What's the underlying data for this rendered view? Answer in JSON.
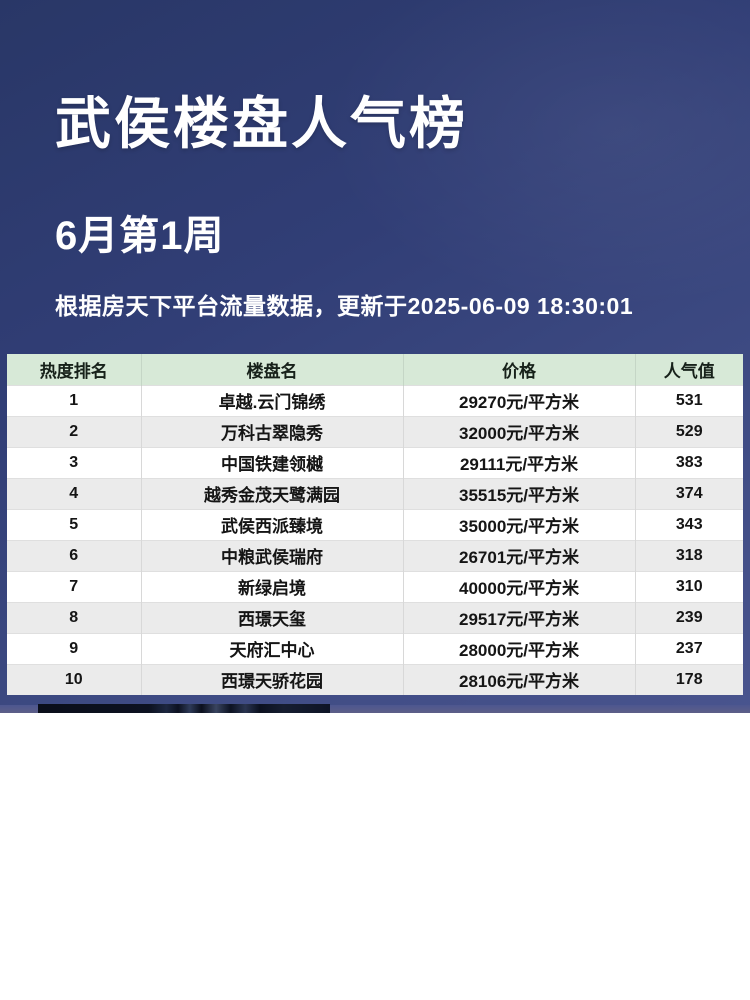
{
  "hero": {
    "title": "武侯楼盘人气榜",
    "period": "6月第1周",
    "source_note": "根据房天下平台流量数据，更新于2025-06-09 18:30:01"
  },
  "table": {
    "columns": {
      "rank": "热度排名",
      "name": "楼盘名",
      "price": "价格",
      "popularity": "人气值"
    }
  },
  "chart_data": {
    "type": "table",
    "title": "武侯楼盘人气榜",
    "subtitle": "6月第1周",
    "note": "根据房天下平台流量数据，更新于2025-06-09 18:30:01",
    "columns": [
      "热度排名",
      "楼盘名",
      "价格",
      "人气值"
    ],
    "rows": [
      {
        "rank": "1",
        "name": "卓越.云门锦绣",
        "price": "29270元/平方米",
        "popularity": "531"
      },
      {
        "rank": "2",
        "name": "万科古翠隐秀",
        "price": "32000元/平方米",
        "popularity": "529"
      },
      {
        "rank": "3",
        "name": "中国铁建领樾",
        "price": "29111元/平方米",
        "popularity": "383"
      },
      {
        "rank": "4",
        "name": "越秀金茂天鹭满园",
        "price": "35515元/平方米",
        "popularity": "374"
      },
      {
        "rank": "5",
        "name": "武侯西派臻境",
        "price": "35000元/平方米",
        "popularity": "343"
      },
      {
        "rank": "6",
        "name": "中粮武侯瑞府",
        "price": "26701元/平方米",
        "popularity": "318"
      },
      {
        "rank": "7",
        "name": "新绿启境",
        "price": "40000元/平方米",
        "popularity": "310"
      },
      {
        "rank": "8",
        "name": "西璟天玺",
        "price": "29517元/平方米",
        "popularity": "239"
      },
      {
        "rank": "9",
        "name": "天府汇中心",
        "price": "28000元/平方米",
        "popularity": "237"
      },
      {
        "rank": "10",
        "name": "西璟天骄花园",
        "price": "28106元/平方米",
        "popularity": "178"
      }
    ]
  },
  "colors": {
    "hero_gradient_start": "#293767",
    "hero_gradient_end": "#49548e",
    "table_header_bg": "#d7e9d7",
    "row_stripe": "#ebebeb",
    "text_dark": "#151515",
    "text_light": "#ffffff"
  }
}
